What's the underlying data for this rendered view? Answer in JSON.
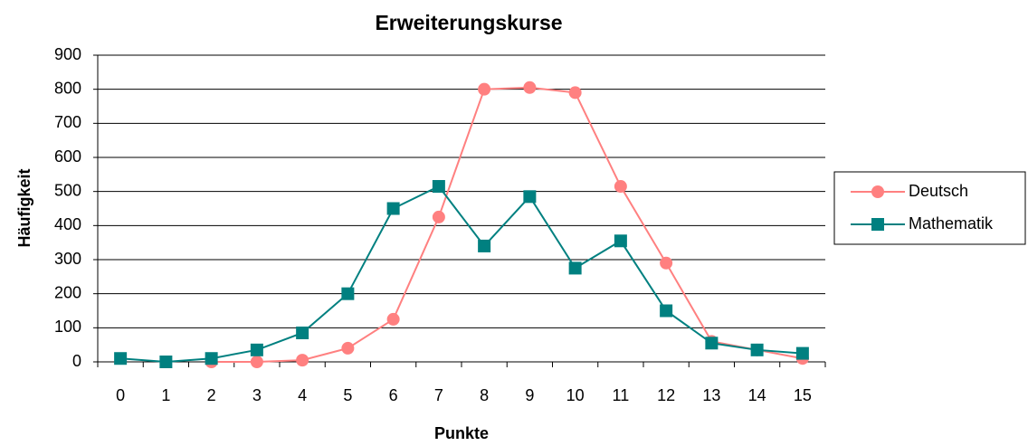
{
  "chart_data": {
    "type": "line",
    "title": "Erweiterungskurse",
    "x_label": "Punkte",
    "y_label": "Häufigkeit",
    "categories": [
      "0",
      "1",
      "2",
      "3",
      "4",
      "5",
      "6",
      "7",
      "8",
      "9",
      "10",
      "11",
      "12",
      "13",
      "14",
      "15"
    ],
    "series": [
      {
        "name": "Deutsch",
        "color": "#ff8080",
        "marker": "circle",
        "values": [
          null,
          null,
          0,
          0,
          5,
          40,
          125,
          425,
          800,
          805,
          790,
          515,
          290,
          60,
          35,
          10
        ]
      },
      {
        "name": "Mathematik",
        "color": "#008080",
        "marker": "square",
        "values": [
          10,
          0,
          10,
          35,
          85,
          200,
          450,
          515,
          340,
          485,
          275,
          355,
          150,
          55,
          35,
          25
        ]
      }
    ],
    "ylim": [
      0,
      900
    ],
    "yticks": [
      0,
      100,
      200,
      300,
      400,
      500,
      600,
      700,
      800,
      900
    ],
    "grid": true,
    "legend": "right"
  }
}
